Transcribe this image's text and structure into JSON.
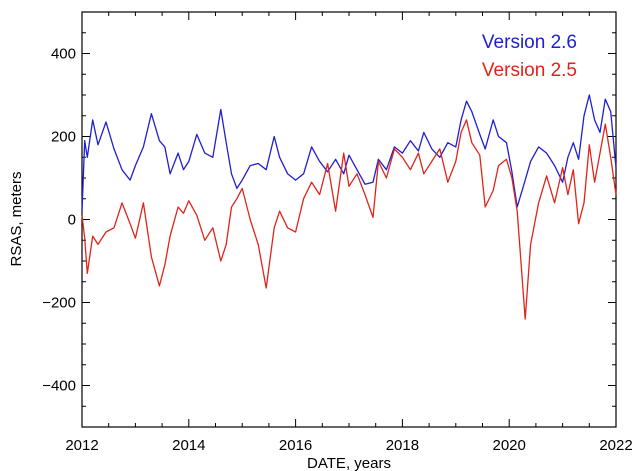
{
  "chart_data": {
    "type": "line",
    "title": "",
    "xlabel": "DATE, years",
    "ylabel": "RSAS, meters",
    "xlim": [
      2012,
      2022
    ],
    "ylim": [
      -500,
      500
    ],
    "x_ticks": [
      "2012",
      "2014",
      "2016",
      "2018",
      "2020",
      "2022"
    ],
    "y_ticks": [
      "−400",
      "−200",
      "0",
      "200",
      "400"
    ],
    "grid": false,
    "legend_position": "top-right",
    "series": [
      {
        "name": "Version 2.6",
        "color": "#1f1fd0",
        "x": [
          2012.0,
          2012.05,
          2012.1,
          2012.2,
          2012.3,
          2012.45,
          2012.6,
          2012.75,
          2012.9,
          2013.0,
          2013.15,
          2013.3,
          2013.45,
          2013.55,
          2013.65,
          2013.8,
          2013.9,
          2014.0,
          2014.15,
          2014.3,
          2014.45,
          2014.6,
          2014.7,
          2014.8,
          2014.9,
          2015.0,
          2015.15,
          2015.3,
          2015.45,
          2015.6,
          2015.7,
          2015.85,
          2016.0,
          2016.15,
          2016.3,
          2016.45,
          2016.6,
          2016.75,
          2016.9,
          2017.0,
          2017.15,
          2017.3,
          2017.45,
          2017.55,
          2017.7,
          2017.85,
          2018.0,
          2018.15,
          2018.3,
          2018.4,
          2018.55,
          2018.7,
          2018.85,
          2019.0,
          2019.1,
          2019.2,
          2019.3,
          2019.45,
          2019.55,
          2019.7,
          2019.8,
          2019.95,
          2020.05,
          2020.15,
          2020.3,
          2020.4,
          2020.55,
          2020.7,
          2020.85,
          2021.0,
          2021.1,
          2021.2,
          2021.3,
          2021.4,
          2021.5,
          2021.6,
          2021.7,
          2021.8,
          2021.9,
          2022.0
        ],
        "y": [
          20,
          190,
          150,
          240,
          180,
          235,
          170,
          120,
          95,
          130,
          175,
          255,
          190,
          175,
          110,
          160,
          120,
          140,
          205,
          160,
          150,
          265,
          185,
          110,
          75,
          95,
          130,
          135,
          120,
          200,
          150,
          110,
          95,
          110,
          175,
          140,
          115,
          145,
          110,
          155,
          120,
          85,
          90,
          145,
          120,
          175,
          160,
          190,
          165,
          210,
          170,
          150,
          185,
          175,
          240,
          285,
          260,
          205,
          170,
          240,
          200,
          185,
          115,
          30,
          95,
          140,
          175,
          160,
          130,
          90,
          150,
          185,
          145,
          250,
          300,
          240,
          210,
          290,
          260,
          125
        ]
      },
      {
        "name": "Version 2.5",
        "color": "#e0241a",
        "x": [
          2012.0,
          2012.05,
          2012.1,
          2012.2,
          2012.3,
          2012.45,
          2012.6,
          2012.75,
          2012.9,
          2013.0,
          2013.15,
          2013.3,
          2013.45,
          2013.55,
          2013.65,
          2013.8,
          2013.9,
          2014.0,
          2014.15,
          2014.3,
          2014.45,
          2014.6,
          2014.7,
          2014.8,
          2014.9,
          2015.0,
          2015.15,
          2015.3,
          2015.45,
          2015.6,
          2015.7,
          2015.85,
          2016.0,
          2016.15,
          2016.3,
          2016.45,
          2016.6,
          2016.75,
          2016.9,
          2017.0,
          2017.15,
          2017.3,
          2017.45,
          2017.55,
          2017.7,
          2017.85,
          2018.0,
          2018.15,
          2018.3,
          2018.4,
          2018.55,
          2018.7,
          2018.85,
          2019.0,
          2019.1,
          2019.2,
          2019.3,
          2019.45,
          2019.55,
          2019.7,
          2019.8,
          2019.95,
          2020.05,
          2020.15,
          2020.3,
          2020.4,
          2020.55,
          2020.7,
          2020.85,
          2021.0,
          2021.1,
          2021.2,
          2021.3,
          2021.4,
          2021.5,
          2021.6,
          2021.7,
          2021.8,
          2021.9,
          2022.0
        ],
        "y": [
          10,
          -45,
          -130,
          -40,
          -60,
          -30,
          -20,
          40,
          -10,
          -45,
          40,
          -90,
          -160,
          -110,
          -40,
          30,
          15,
          45,
          10,
          -50,
          -20,
          -100,
          -60,
          30,
          50,
          75,
          0,
          -60,
          -165,
          -20,
          20,
          -20,
          -30,
          50,
          90,
          60,
          135,
          20,
          160,
          80,
          110,
          60,
          5,
          140,
          100,
          170,
          150,
          120,
          160,
          110,
          140,
          170,
          90,
          140,
          210,
          240,
          185,
          155,
          30,
          70,
          130,
          145,
          100,
          20,
          -240,
          -60,
          40,
          105,
          40,
          125,
          60,
          120,
          -10,
          40,
          180,
          90,
          160,
          230,
          150,
          60
        ]
      }
    ]
  }
}
